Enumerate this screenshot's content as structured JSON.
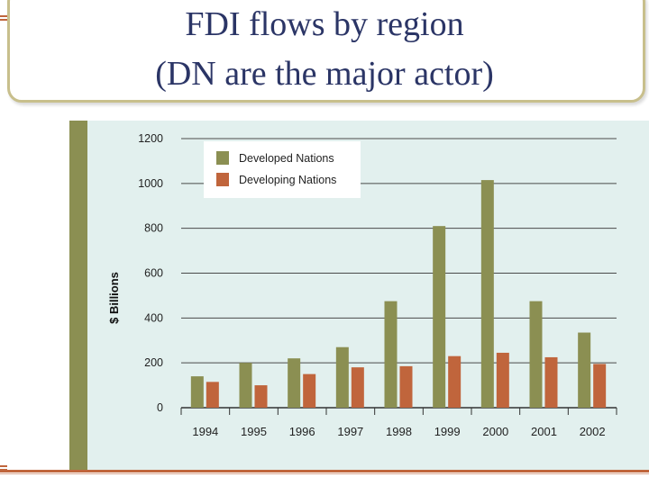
{
  "slide": {
    "title_line_1": "FDI flows by region",
    "title_line_2": "(DN are the major actor)"
  },
  "colors": {
    "title_text": "#2b3566",
    "title_border": "#c8bf8c",
    "chart_background": "#e2f0ee",
    "chart_sidebar": "#8b8f52",
    "accent_rule": "#c0653c"
  },
  "chart_data": {
    "type": "bar",
    "title": "",
    "xlabel": "",
    "ylabel": "$ Billions",
    "categories": [
      "1994",
      "1995",
      "1996",
      "1997",
      "1998",
      "1999",
      "2000",
      "2001",
      "2002"
    ],
    "series": [
      {
        "name": "Developed Nations",
        "color": "#8b8f52",
        "values": [
          140,
          200,
          220,
          270,
          475,
          810,
          1015,
          475,
          335
        ]
      },
      {
        "name": "Developing Nations",
        "color": "#c0653c",
        "values": [
          115,
          100,
          150,
          180,
          185,
          230,
          245,
          225,
          195
        ]
      }
    ],
    "ylim": [
      0,
      1200
    ],
    "yticks": [
      0,
      200,
      400,
      600,
      800,
      1000,
      1200
    ],
    "grid": true,
    "legend_position": "top-left"
  }
}
